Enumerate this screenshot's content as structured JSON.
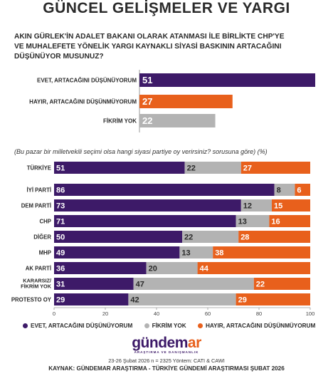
{
  "header": {
    "title": "GÜNCEL GELİŞMELER VE YARGI"
  },
  "question_lines": [
    "AKIN GÜRLEK'İN ADALET BAKANI OLARAK ATANMASI İLE BİRLİKTE CHP'YE",
    "VE MUHALEFETE YÖNELİK YARGI KAYNAKLI SİYASİ BASKININ ARTACAĞINI",
    "DÜŞÜNÜYOR MUSUNUZ?"
  ],
  "note": "(Bu pazar bir milletvekili seçimi olsa hangi siyasi partiye oy verirsiniz? sorusuna göre) (%)",
  "colors": {
    "evet": "#3d1a68",
    "fikrim_yok": "#b3b3b3",
    "hayir": "#e8601c"
  },
  "chart_data": [
    {
      "type": "bar",
      "orientation": "horizontal",
      "categories": [
        "EVET, ARTACAĞINI DÜŞÜNÜYORUM",
        "HAYIR, ARTACAĞINI DÜŞÜNMÜYORUM",
        "FİKRİM YOK"
      ],
      "values": [
        51,
        27,
        22
      ],
      "value_labels": [
        "51",
        "27",
        "22"
      ],
      "colors": [
        "#3d1a68",
        "#e8601c",
        "#b3b3b3"
      ],
      "xlim": [
        0,
        51
      ]
    },
    {
      "type": "bar",
      "orientation": "horizontal",
      "stacked": true,
      "categories": [
        "TÜRKİYE",
        "İYİ PARTİ",
        "DEM PARTİ",
        "CHP",
        "DİĞER",
        "MHP",
        "AK PARTİ",
        "KARARSIZ/ FİKRİM YOK",
        "PROTESTO OY"
      ],
      "series": [
        {
          "name": "EVET, ARTACAĞINI DÜŞÜNÜYORUM",
          "color": "#3d1a68",
          "values": [
            51,
            86,
            73,
            71,
            50,
            49,
            36,
            31,
            29
          ]
        },
        {
          "name": "FİKRİM YOK",
          "color": "#b3b3b3",
          "values": [
            22,
            8,
            12,
            13,
            22,
            13,
            20,
            47,
            42
          ]
        },
        {
          "name": "HAYIR, ARTACAĞINI DÜŞÜNMÜYORUM",
          "color": "#e8601c",
          "values": [
            27,
            6,
            15,
            16,
            28,
            38,
            44,
            22,
            29
          ]
        }
      ],
      "xticks": [
        "0",
        "20",
        "40",
        "60",
        "80",
        "100"
      ],
      "xlim": [
        0,
        100
      ]
    }
  ],
  "legend": [
    {
      "label": "EVET, ARTACAĞINI DÜŞÜNÜYORUM",
      "color": "#3d1a68"
    },
    {
      "label": "FİKRİM YOK",
      "color": "#b3b3b3"
    },
    {
      "label": "HAYIR, ARTACAĞINI DÜŞÜNMÜYORUM",
      "color": "#e8601c"
    }
  ],
  "logo": {
    "part1": "gündem",
    "part2": "ar",
    "tagline": "ARAŞTIRMA VE DANIŞMANLIK"
  },
  "meta": "23-26 Şubat 2026 n = 2325 Yöntem: CATI & CAWI",
  "source": "KAYNAK: GÜNDEMAR ARAŞTIRMA - TÜRKİYE GÜNDEMİ ARAŞTIRMASI ŞUBAT 2026"
}
